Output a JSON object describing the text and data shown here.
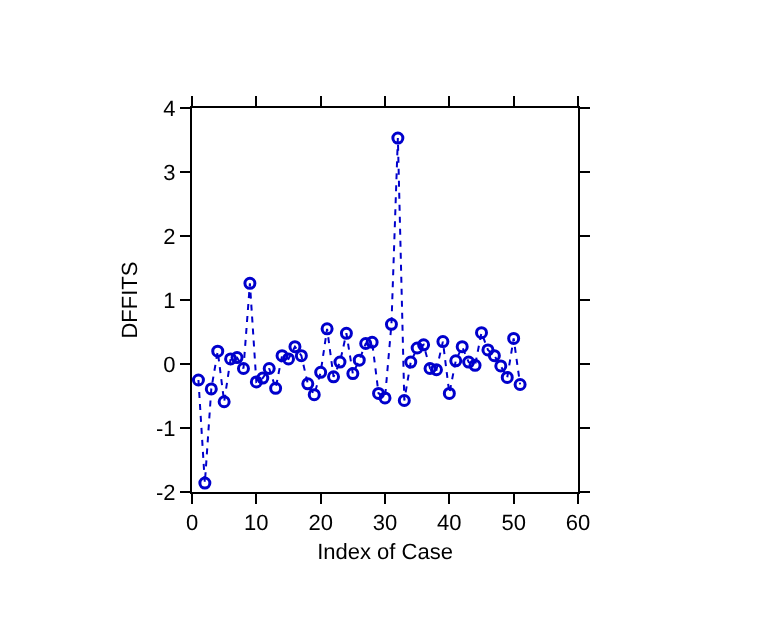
{
  "chart_data": {
    "type": "line",
    "xlabel": "Index of Case",
    "ylabel": "DFFITS",
    "x": [
      1,
      2,
      3,
      4,
      5,
      6,
      7,
      8,
      9,
      10,
      11,
      12,
      13,
      14,
      15,
      16,
      17,
      18,
      19,
      20,
      21,
      22,
      23,
      24,
      25,
      26,
      27,
      28,
      29,
      30,
      31,
      32,
      33,
      34,
      35,
      36,
      37,
      38,
      39,
      40,
      41,
      42,
      43,
      44,
      45,
      46,
      47,
      48,
      49,
      50,
      51
    ],
    "series": [
      {
        "color": "#0000cc",
        "values": [
          -0.25,
          -1.86,
          -0.39,
          0.2,
          -0.59,
          0.08,
          0.1,
          -0.07,
          1.26,
          -0.28,
          -0.22,
          -0.07,
          -0.38,
          0.13,
          0.08,
          0.27,
          0.13,
          -0.31,
          -0.48,
          -0.13,
          0.55,
          -0.2,
          0.03,
          0.48,
          -0.15,
          0.06,
          0.32,
          0.34,
          -0.46,
          -0.53,
          0.62,
          3.53,
          -0.57,
          0.03,
          0.25,
          0.3,
          -0.07,
          -0.09,
          0.35,
          -0.46,
          0.05,
          0.27,
          0.03,
          -0.02,
          0.49,
          0.22,
          0.13,
          -0.03,
          -0.21,
          0.4,
          -0.32
        ]
      }
    ],
    "xlim": [
      0,
      60
    ],
    "xticks": [
      0,
      10,
      20,
      30,
      40,
      50,
      60
    ],
    "ylim": [
      -2,
      4
    ],
    "yticks": [
      -2,
      -1,
      0,
      1,
      2,
      3,
      4
    ],
    "marker": "circle",
    "line_style": "dotted",
    "legend": false
  }
}
